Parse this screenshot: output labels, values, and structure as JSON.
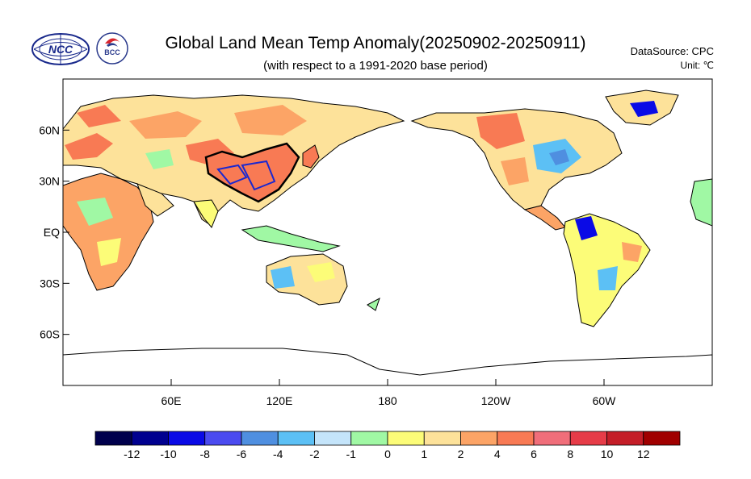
{
  "title": "Global Land Mean Temp Anomaly(20250902-20250911)",
  "subtitle": "(with respect to a 1991-2020 base period)",
  "data_source": "DataSource:  CPC",
  "unit": "Unit:  ℃",
  "logos": [
    {
      "name": "ncc-logo",
      "text": "NCC"
    },
    {
      "name": "bcc-logo",
      "text": "BCC"
    }
  ],
  "map": {
    "projection": "equirectangular, Pacific-centered",
    "lon_range": [
      0,
      360
    ],
    "lat_range": [
      -90,
      90
    ],
    "lat_ticks": [
      {
        "lat": 60,
        "label": "60N"
      },
      {
        "lat": 30,
        "label": "30N"
      },
      {
        "lat": 0,
        "label": "EQ"
      },
      {
        "lat": -30,
        "label": "30S"
      },
      {
        "lat": -60,
        "label": "60S"
      }
    ],
    "lon_ticks": [
      {
        "lon": 60,
        "label": "60E"
      },
      {
        "lon": 120,
        "label": "120E"
      },
      {
        "lon": 180,
        "label": "180"
      },
      {
        "lon": 240,
        "label": "120W"
      },
      {
        "lon": 300,
        "label": "60W"
      }
    ]
  },
  "colorbar": {
    "colors": [
      "#00004c",
      "#00008f",
      "#0a0ae6",
      "#4b4bf0",
      "#4f8fe0",
      "#5cc0f5",
      "#c4e4fa",
      "#a0f8a4",
      "#fcfc78",
      "#fde29a",
      "#fca466",
      "#f87a54",
      "#f06e7a",
      "#e63c48",
      "#c41e28",
      "#a00000"
    ],
    "labels": [
      "-12",
      "-10",
      "-8",
      "-6",
      "-4",
      "-2",
      "-1",
      "0",
      "1",
      "2",
      "4",
      "6",
      "8",
      "10",
      "12"
    ]
  }
}
